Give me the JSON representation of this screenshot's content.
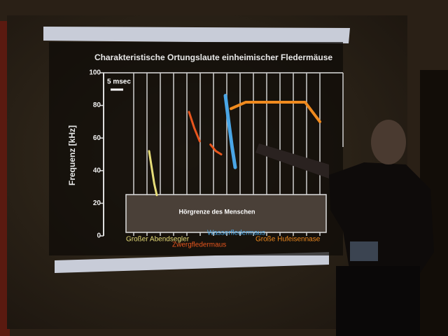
{
  "chart_data": {
    "type": "line",
    "title": "Charakteristische Ortungslaute einheimischer Fledermäuse",
    "y_label": "Frequenz [kHz]",
    "scale_label": "5 msec",
    "annotation": "Hörgrenze des Menschen",
    "ylim": [
      0,
      100
    ],
    "yticks": [
      0,
      20,
      40,
      60,
      80,
      100
    ],
    "series": [
      {
        "name": "Großer Abendsegler",
        "color": "#e6dc78",
        "values": [
          52,
          42,
          32,
          25
        ]
      },
      {
        "name": "Zwergfledermaus",
        "color": "#e8561e",
        "values": [
          76,
          66,
          58,
          null,
          56,
          52,
          50
        ]
      },
      {
        "name": "Wasserfledermaus",
        "color": "#4aa6e6",
        "values": [
          86,
          70,
          55,
          42
        ]
      },
      {
        "name": "Große Hufeisennase",
        "color": "#f08a1e",
        "values": [
          78,
          82,
          82,
          82,
          82,
          82,
          70
        ]
      }
    ]
  }
}
